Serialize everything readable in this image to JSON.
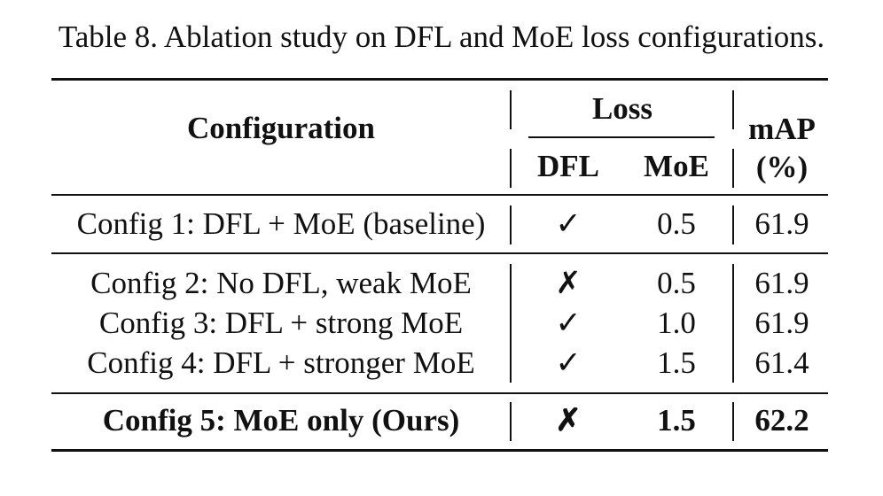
{
  "caption": "Table 8. Ablation study on DFL and MoE loss configurations.",
  "headers": {
    "configuration": "Configuration",
    "loss": "Loss",
    "dfl": "DFL",
    "moe": "MoE",
    "map_line1": "mAP",
    "map_line2": "(%)"
  },
  "rows": [
    {
      "config": "Config 1: DFL + MoE (baseline)",
      "dfl": "✓",
      "moe": "0.5",
      "map": "61.9"
    },
    {
      "config": "Config 2: No DFL, weak MoE",
      "dfl": "✗",
      "moe": "0.5",
      "map": "61.9"
    },
    {
      "config": "Config 3: DFL + strong MoE",
      "dfl": "✓",
      "moe": "1.0",
      "map": "61.9"
    },
    {
      "config": "Config 4: DFL + stronger MoE",
      "dfl": "✓",
      "moe": "1.5",
      "map": "61.4"
    },
    {
      "config": "Config 5: MoE only (Ours)",
      "dfl": "✗",
      "moe": "1.5",
      "map": "62.2"
    }
  ]
}
